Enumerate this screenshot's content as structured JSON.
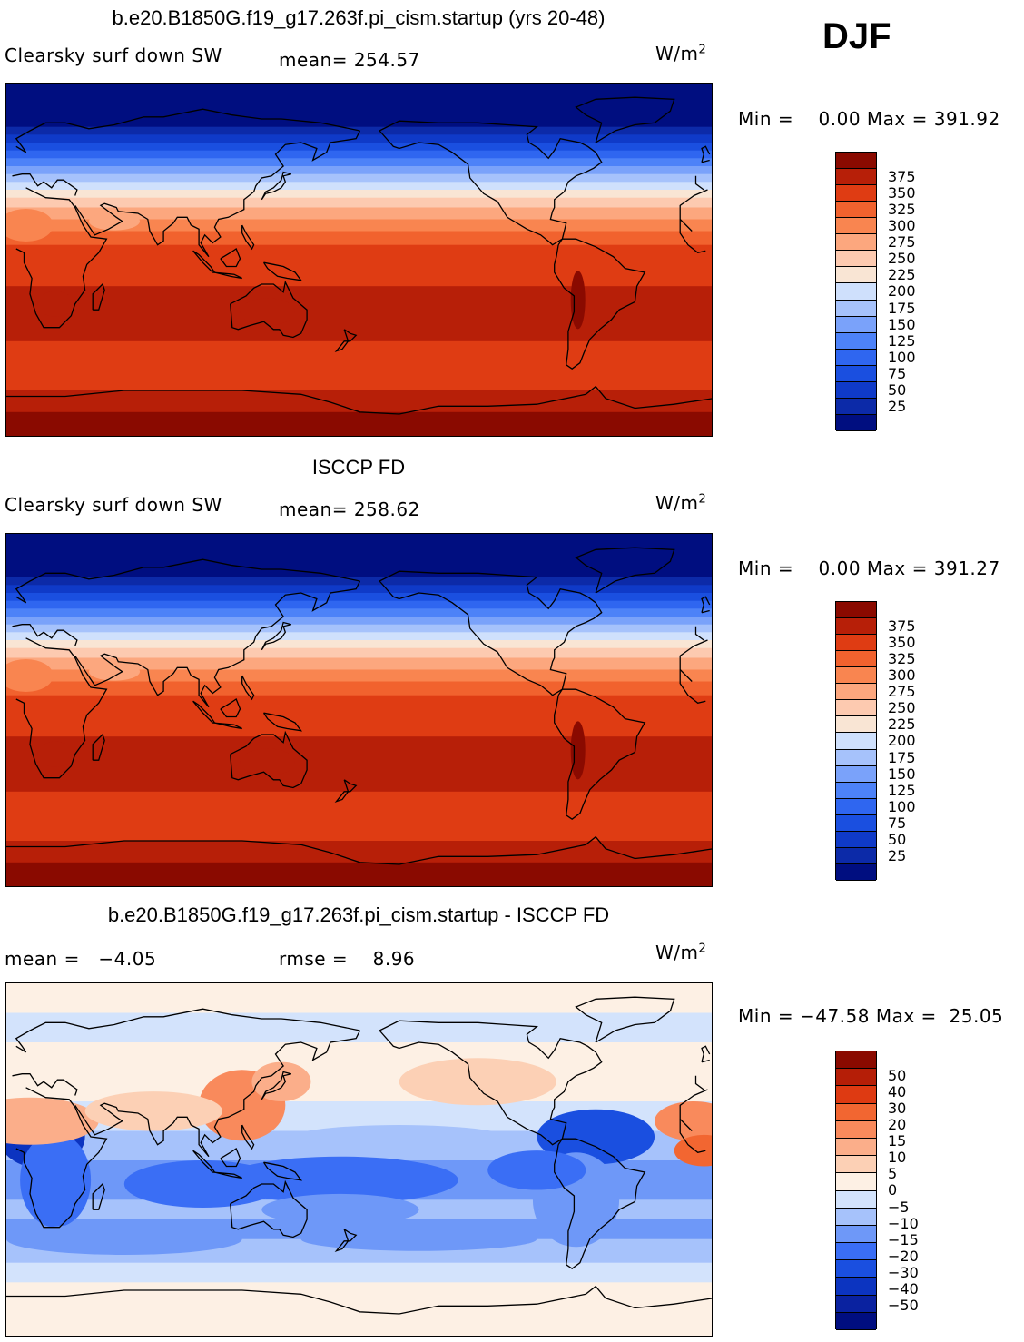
{
  "season": "DJF",
  "panels": [
    {
      "title": "b.e20.B1850G.f19_g17.263f.pi_cism.startup (yrs 20-48)",
      "left_label": "Clearsky surf down SW",
      "stat_label": "mean= 254.57",
      "units": "W/m",
      "units_exp": "2",
      "minmax": "Min =    0.00 Max = 391.92",
      "kind": "model",
      "colors": [
        "#000e80",
        "#0c2aa8",
        "#0f3ac8",
        "#1a4fe0",
        "#2f66f0",
        "#4d82f8",
        "#7aa2fa",
        "#a6c2fb",
        "#cfe0fc",
        "#f9e5d4",
        "#fdcab0",
        "#fca77e",
        "#f98550",
        "#f1622e",
        "#df3c13",
        "#b71f08",
        "#8a0a00"
      ],
      "ticks": [
        "375",
        "350",
        "325",
        "300",
        "275",
        "250",
        "225",
        "200",
        "175",
        "150",
        "125",
        "100",
        "75",
        "50",
        "25"
      ]
    },
    {
      "title": "ISCCP FD",
      "left_label": "Clearsky surf down SW",
      "stat_label": "mean= 258.62",
      "units": "W/m",
      "units_exp": "2",
      "minmax": "Min =    0.00 Max = 391.27",
      "kind": "obs",
      "colors": [
        "#000e80",
        "#0c2aa8",
        "#0f3ac8",
        "#1a4fe0",
        "#2f66f0",
        "#4d82f8",
        "#7aa2fa",
        "#a6c2fb",
        "#cfe0fc",
        "#f9e5d4",
        "#fdcab0",
        "#fca77e",
        "#f98550",
        "#f1622e",
        "#df3c13",
        "#b71f08",
        "#8a0a00"
      ],
      "ticks": [
        "375",
        "350",
        "325",
        "300",
        "275",
        "250",
        "225",
        "200",
        "175",
        "150",
        "125",
        "100",
        "75",
        "50",
        "25"
      ]
    },
    {
      "title": "b.e20.B1850G.f19_g17.263f.pi_cism.startup - ISCCP FD",
      "left_label": "mean =   −4.05",
      "stat_label": "rmse =    8.96",
      "units": "W/m",
      "units_exp": "2",
      "minmax": "Min = −47.58 Max =  25.05",
      "kind": "diff",
      "colors": [
        "#000e80",
        "#0a22a0",
        "#0c34c0",
        "#1a4fe0",
        "#3a6ef5",
        "#6e98f8",
        "#a6c2fb",
        "#d3e3fc",
        "#fdf0e4",
        "#fcd0b5",
        "#fbae8a",
        "#f98a5c",
        "#f26631",
        "#de3a12",
        "#b51e07",
        "#8a0a00"
      ],
      "ticks": [
        "50",
        "40",
        "30",
        "20",
        "15",
        "10",
        "5",
        "0",
        "−5",
        "−10",
        "−15",
        "−20",
        "−30",
        "−40",
        "−50"
      ]
    }
  ]
}
